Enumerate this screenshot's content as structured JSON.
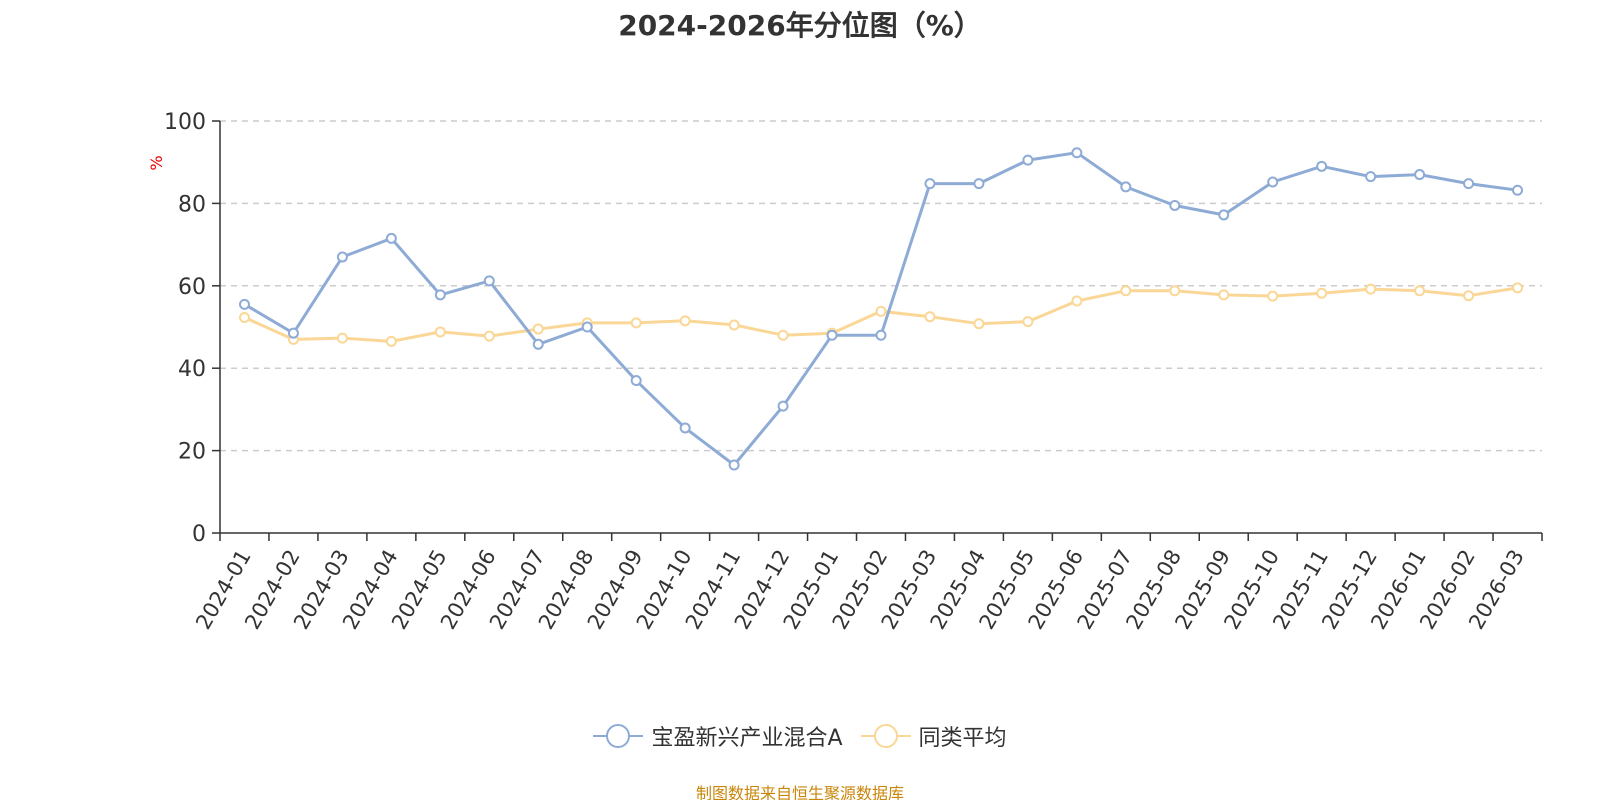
{
  "chart_data": {
    "type": "line",
    "title": "2024-2026年分位图（%）",
    "xlabel": "",
    "ylabel": "%",
    "ylim": [
      0,
      100
    ],
    "yticks": [
      0,
      20,
      40,
      60,
      80,
      100
    ],
    "grid": true,
    "legend_position": "bottom-center",
    "categories": [
      "2024-01",
      "2024-02",
      "2024-03",
      "2024-04",
      "2024-05",
      "2024-06",
      "2024-07",
      "2024-08",
      "2024-09",
      "2024-10",
      "2024-11",
      "2024-12",
      "2025-01",
      "2025-02",
      "2025-03",
      "2025-04",
      "2025-05",
      "2025-06",
      "2025-07",
      "2025-08",
      "2025-09",
      "2025-10",
      "2025-11",
      "2025-12",
      "2026-01",
      "2026-02",
      "2026-03"
    ],
    "series": [
      {
        "name": "宝盈新兴产业混合A",
        "color": "#8eabd6",
        "values": [
          55.5,
          48.5,
          67.0,
          71.5,
          57.8,
          61.2,
          45.8,
          50.0,
          37.0,
          25.5,
          16.5,
          30.8,
          48.0,
          48.0,
          84.8,
          84.8,
          90.5,
          92.3,
          84.0,
          79.5,
          77.2,
          85.2,
          89.0,
          86.5,
          87.0,
          84.8,
          83.2
        ]
      },
      {
        "name": "同类平均",
        "color": "#fad796",
        "values": [
          52.3,
          47.0,
          47.3,
          46.5,
          48.8,
          47.8,
          49.5,
          51.0,
          51.0,
          51.5,
          50.5,
          48.0,
          48.5,
          53.8,
          52.5,
          50.8,
          51.3,
          56.3,
          58.8,
          58.8,
          57.8,
          57.5,
          58.2,
          59.2,
          58.8,
          57.6,
          59.5
        ]
      }
    ]
  },
  "source_text": "制图数据来自恒生聚源数据库"
}
